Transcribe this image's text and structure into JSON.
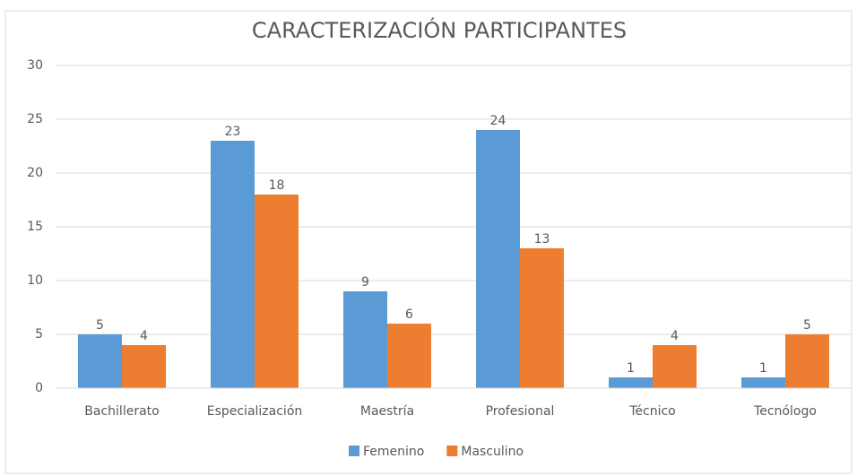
{
  "chart_data": {
    "type": "bar",
    "title": "CARACTERIZACIÓN PARTICIPANTES",
    "categories": [
      "Bachillerato",
      "Especialización",
      "Maestría",
      "Profesional",
      "Técnico",
      "Tecnólogo"
    ],
    "series": [
      {
        "name": "Femenino",
        "color": "#5b9bd5",
        "values": [
          5,
          23,
          9,
          24,
          1,
          1
        ]
      },
      {
        "name": "Masculino",
        "color": "#ed7d31",
        "values": [
          4,
          18,
          6,
          13,
          4,
          5
        ]
      }
    ],
    "ylim": [
      0,
      30
    ],
    "yticks": [
      0,
      5,
      10,
      15,
      20,
      25,
      30
    ],
    "grid": true,
    "legend": "bottom",
    "data_labels": true
  }
}
